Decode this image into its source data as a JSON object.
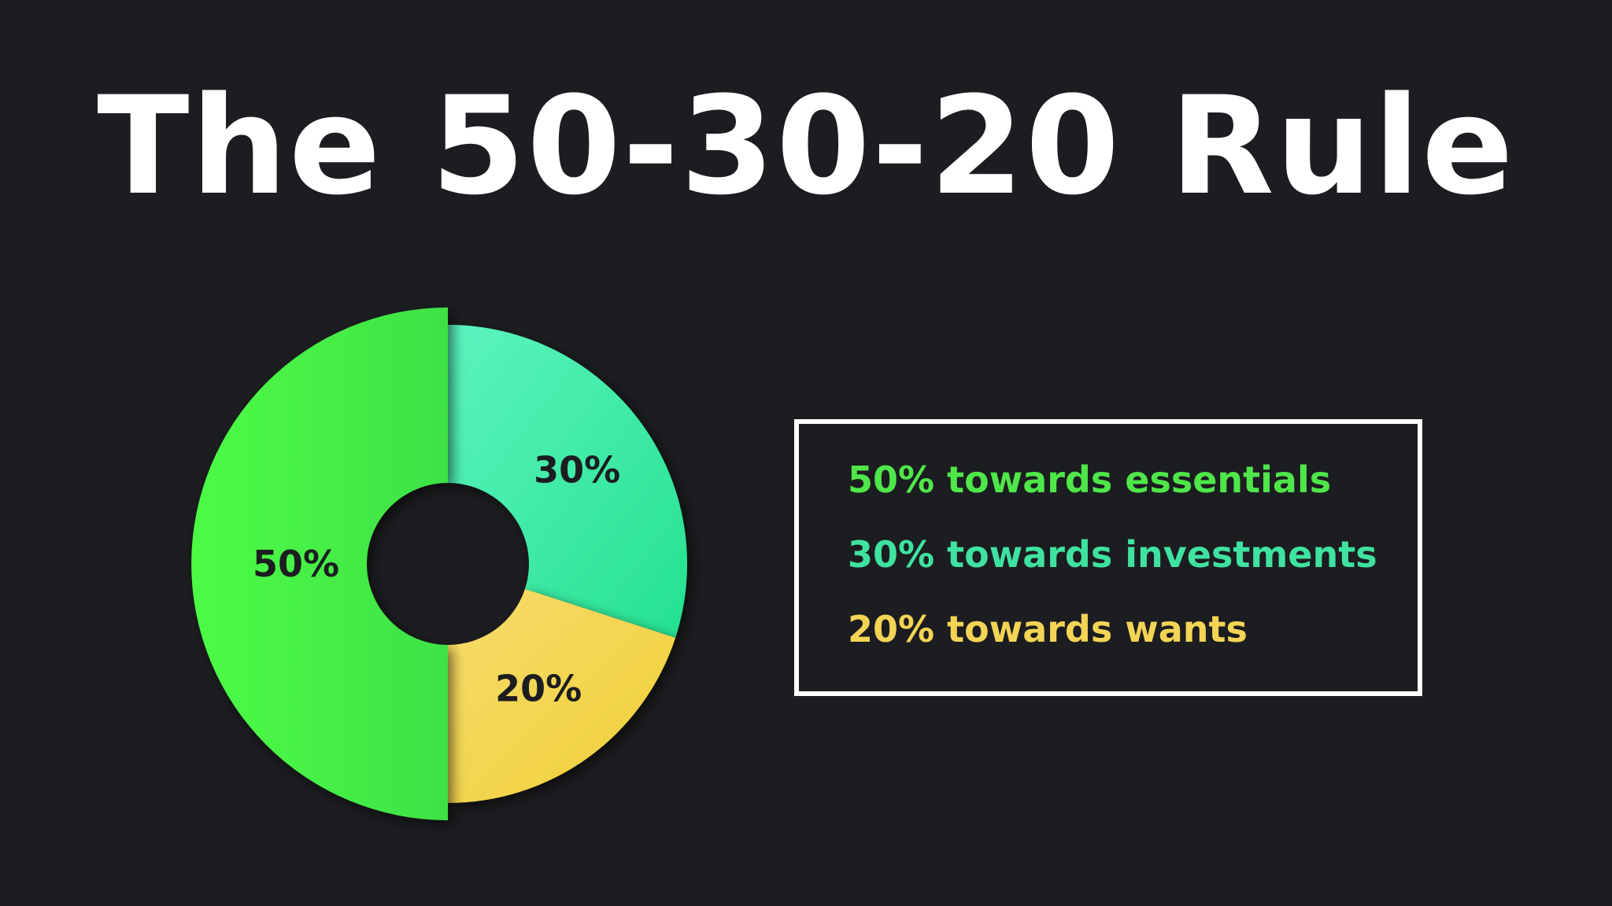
{
  "title": "The 50-30-20 Rule",
  "chart_data": {
    "type": "pie",
    "style": "exploded donut",
    "slices": [
      {
        "label": "50%",
        "value": 50,
        "color": "#44ea44"
      },
      {
        "label": "30%",
        "value": 30,
        "color": "#3de9a4"
      },
      {
        "label": "20%",
        "value": 20,
        "color": "#f5d448"
      }
    ]
  },
  "legend": {
    "items": [
      {
        "text": "50% towards essentials",
        "color": "#4fe64a"
      },
      {
        "text": "30% towards investments",
        "color": "#3fe2a0"
      },
      {
        "text": "20% towards wants",
        "color": "#f3d455"
      }
    ]
  }
}
